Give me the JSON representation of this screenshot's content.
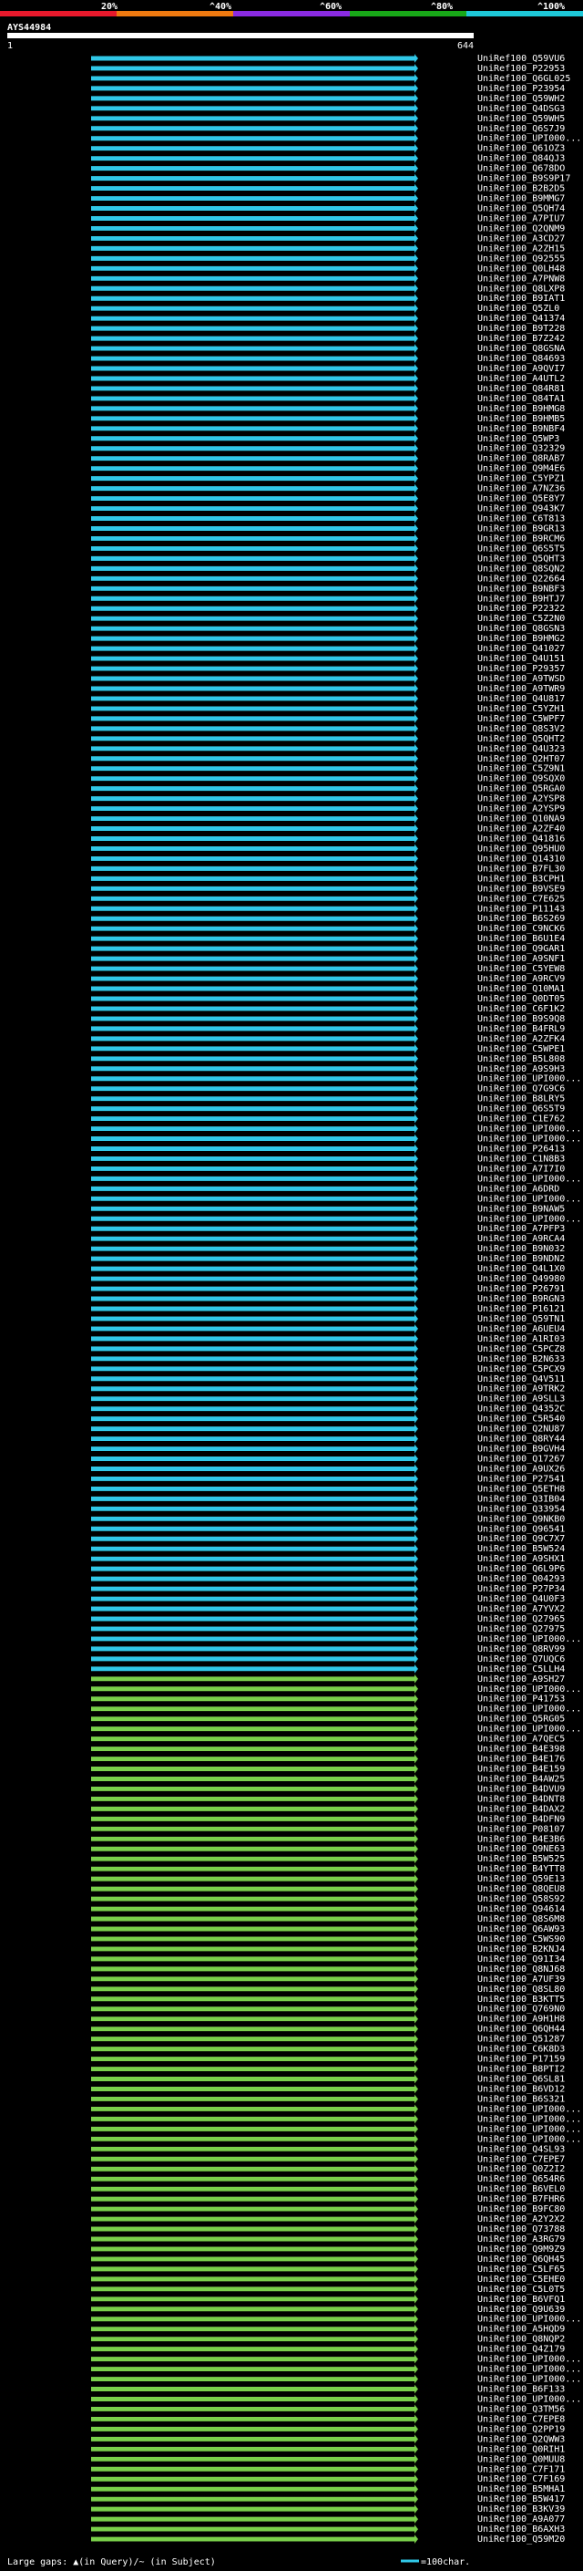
{
  "chart_data": {
    "type": "alignment-overview",
    "query_id": "AYS44984",
    "query_start": "1",
    "query_length": "644",
    "identity_scale": {
      "ticks": [
        "20%",
        "^40%",
        "^60%",
        "^80%",
        "^100%"
      ],
      "colors": [
        "#e8192c",
        "#f07a10",
        "#8a2be2",
        "#18a818",
        "#1ec8d8"
      ]
    },
    "footer": {
      "gaps_text": "Large gaps: ▲(in Query)/~ (in Subject)",
      "scale_text": "=100char."
    },
    "bar_colors": {
      "blue": "#30c8e8",
      "green": "#7ad04a",
      "line": "#fff"
    },
    "hits": [
      "UniRef100_Q59VU6",
      "UniRef100_P22953",
      "UniRef100_Q6GL025",
      "UniRef100_P23954",
      "UniRef100_Q59WH2",
      "UniRef100_Q4DSG3",
      "UniRef100_Q59WH5",
      "UniRef100_Q6S7J9",
      "UniRef100_UPI000...",
      "UniRef100_Q61OZ3",
      "UniRef100_Q84QJ3",
      "UniRef100_Q678DO",
      "UniRef100_B9S9P17",
      "UniRef100_B2B2D5",
      "UniRef100_B9MMG7",
      "UniRef100_Q5QH74",
      "UniRef100_A7PIU7",
      "UniRef100_Q2QNM9",
      "UniRef100_A3CD27",
      "UniRef100_A2ZH15",
      "UniRef100_Q92555",
      "UniRef100_Q0LH48",
      "UniRef100_A7PNW8",
      "UniRef100_Q8LXP8",
      "UniRef100_B9IAT1",
      "UniRef100_Q5ZL0",
      "UniRef100_Q41374",
      "UniRef100_B9T228",
      "UniRef100_B7Z242",
      "UniRef100_Q8GSNA",
      "UniRef100_Q84693",
      "UniRef100_A9QVI7",
      "UniRef100_A4UTL2",
      "UniRef100_Q84R81",
      "UniRef100_Q84TA1",
      "UniRef100_B9HMG8",
      "UniRef100_B9HMB5",
      "UniRef100_B9NBF4",
      "UniRef100_Q5WP3",
      "UniRef100_Q32329",
      "UniRef100_Q8RAB7",
      "UniRef100_Q9M4E6",
      "UniRef100_C5YPZ1",
      "UniRef100_A7NZ36",
      "UniRef100_Q5E8Y7",
      "UniRef100_Q943K7",
      "UniRef100_C6T813",
      "UniRef100_B9GR13",
      "UniRef100_B9RCM6",
      "UniRef100_Q6S5T5",
      "UniRef100_Q5QHT3",
      "UniRef100_Q8SQN2",
      "UniRef100_Q22664",
      "UniRef100_B9NBF3",
      "UniRef100_B9HTJ7",
      "UniRef100_P22322",
      "UniRef100_C5Z2N0",
      "UniRef100_Q8GSN3",
      "UniRef100_B9HMG2",
      "UniRef100_Q41027",
      "UniRef100_Q4U151",
      "UniRef100_P29357",
      "UniRef100_A9TWSD",
      "UniRef100_A9TWR9",
      "UniRef100_Q4U817",
      "UniRef100_C5YZH1",
      "UniRef100_C5WPF7",
      "UniRef100_Q8S3V2",
      "UniRef100_Q5QHT2",
      "UniRef100_Q4U323",
      "UniRef100_Q2HT07",
      "UniRef100_C5Z9N1",
      "UniRef100_Q9SQX0",
      "UniRef100_Q5RGA0",
      "UniRef100_A2YSP8",
      "UniRef100_A2YSP9",
      "UniRef100_Q10NA9",
      "UniRef100_A2ZF40",
      "UniRef100_Q41816",
      "UniRef100_Q95HU0",
      "UniRef100_Q14310",
      "UniRef100_B7FL30",
      "UniRef100_B3CPH1",
      "UniRef100_B9VSE9",
      "UniRef100_C7E625",
      "UniRef100_P11143",
      "UniRef100_B6S269",
      "UniRef100_C9NCK6",
      "UniRef100_B6U1E4",
      "UniRef100_Q9GAR1",
      "UniRef100_A9SNF1",
      "UniRef100_C5YEW8",
      "UniRef100_A9RCV9",
      "UniRef100_Q10MA1",
      "UniRef100_Q0DT05",
      "UniRef100_C6F1K2",
      "UniRef100_B9S9Q8",
      "UniRef100_B4FRL9",
      "UniRef100_A2ZFK4",
      "UniRef100_C5WPE1",
      "UniRef100_B5L808",
      "UniRef100_A9S9H3",
      "UniRef100_UPI000...",
      "UniRef100_Q7G9C6",
      "UniRef100_B8LRY5",
      "UniRef100_Q6S5T9",
      "UniRef100_C1E762",
      "UniRef100_UPI000...",
      "UniRef100_UPI000...",
      "UniRef100_P26413",
      "UniRef100_C1N8B3",
      "UniRef100_A7I7I0",
      "UniRef100_UPI000...",
      "UniRef100_A6DRD",
      "UniRef100_UPI000...",
      "UniRef100_B9NAW5",
      "UniRef100_UPI000...",
      "UniRef100_A7PFP3",
      "UniRef100_A9RCA4",
      "UniRef100_B9N032",
      "UniRef100_B9NDN2",
      "UniRef100_Q4L1X0",
      "UniRef100_Q49980",
      "UniRef100_P26791",
      "UniRef100_B9RGN3",
      "UniRef100_P16121",
      "UniRef100_Q59TN1",
      "UniRef100_A6UEU4",
      "UniRef100_A1RI03",
      "UniRef100_C5PCZ8",
      "UniRef100_B2N633",
      "UniRef100_C5PCX9",
      "UniRef100_Q4V511",
      "UniRef100_A9TRK2",
      "UniRef100_A9SLL3",
      "UniRef100_Q4352C",
      "UniRef100_C5R540",
      "UniRef100_Q2NU87",
      "UniRef100_Q8RY44",
      "UniRef100_B9GVH4",
      "UniRef100_Q17267",
      "UniRef100_A9UX26",
      "UniRef100_P27541",
      "UniRef100_Q5ETH8",
      "UniRef100_Q3IB04",
      "UniRef100_Q33954",
      "UniRef100_Q9NKB0",
      "UniRef100_Q96541",
      "UniRef100_Q9C7X7",
      "UniRef100_B5W524",
      "UniRef100_A9SHX1",
      "UniRef100_Q6L9P6",
      "UniRef100_Q04293",
      "UniRef100_P27P34",
      "UniRef100_Q4U0F3",
      "UniRef100_A7YVX2",
      "UniRef100_Q27965",
      "UniRef100_Q27975",
      "UniRef100_UPI000...",
      "UniRef100_Q8RV99",
      "UniRef100_Q7UQC6",
      "UniRef100_C5LLH4",
      "UniRef100_A9SH27",
      "UniRef100_UPI000...",
      "UniRef100_P41753",
      "UniRef100_UPI000...",
      "UniRef100_Q5RG05",
      "UniRef100_UPI000...",
      "UniRef100_A7QEC5",
      "UniRef100_B4E398",
      "UniRef100_B4E176",
      "UniRef100_B4E159",
      "UniRef100_B4AW25",
      "UniRef100_B4DVU9",
      "UniRef100_B4DNT8",
      "UniRef100_B4DAX2",
      "UniRef100_B4DFN9",
      "UniRef100_P08107",
      "UniRef100_B4E3B6",
      "UniRef100_Q9NE63",
      "UniRef100_B5W525",
      "UniRef100_B4YTT8",
      "UniRef100_Q59E13",
      "UniRef100_Q8QEU8",
      "UniRef100_Q58S92",
      "UniRef100_Q94614",
      "UniRef100_Q8S6M8",
      "UniRef100_Q6AW93",
      "UniRef100_C5WS90",
      "UniRef100_B2KNJ4",
      "UniRef100_Q91I34",
      "UniRef100_Q8NJ68",
      "UniRef100_A7UF39",
      "UniRef100_Q8SL80",
      "UniRef100_B3KTT5",
      "UniRef100_Q769N0",
      "UniRef100_A9H1H8",
      "UniRef100_Q6QH44",
      "UniRef100_Q51287",
      "UniRef100_C6K8D3",
      "UniRef100_P17159",
      "UniRef100_B8PTI2",
      "UniRef100_Q6SL81",
      "UniRef100_B6VD12",
      "UniRef100_B6S321",
      "UniRef100_UPI000...",
      "UniRef100_UPI000...",
      "UniRef100_UPI000...",
      "UniRef100_UPI000...",
      "UniRef100_Q4SL93",
      "UniRef100_C7EPE7",
      "UniRef100_Q0Z2I2",
      "UniRef100_Q654R6",
      "UniRef100_B6VEL0",
      "UniRef100_B7FHR6",
      "UniRef100_B9FC80",
      "UniRef100_A2Y2X2",
      "UniRef100_Q73788",
      "UniRef100_A3RG79",
      "UniRef100_Q9M9Z9",
      "UniRef100_Q6QH45",
      "UniRef100_C5LF65",
      "UniRef100_C5EHE0",
      "UniRef100_C5L0T5",
      "UniRef100_B6VFQ1",
      "UniRef100_Q9U639",
      "UniRef100_UPI000...",
      "UniRef100_A5HQD9",
      "UniRef100_Q8NQP2",
      "UniRef100_Q4Z179",
      "UniRef100_UPI000...",
      "UniRef100_UPI000...",
      "UniRef100_UPI000...",
      "UniRef100_B6F133",
      "UniRef100_UPI000...",
      "UniRef100_Q3TM56",
      "UniRef100_C7EPE8",
      "UniRef100_Q2PP19",
      "UniRef100_Q2QWW3",
      "UniRef100_Q0RIH1",
      "UniRef100_Q0MUU8",
      "UniRef100_C7F171",
      "UniRef100_C7F169",
      "UniRef100_B5MHA1",
      "UniRef100_B5W417",
      "UniRef100_B3KV39",
      "UniRef100_A9A077",
      "UniRef100_B6AXH3",
      "UniRef100_Q59M20"
    ]
  }
}
